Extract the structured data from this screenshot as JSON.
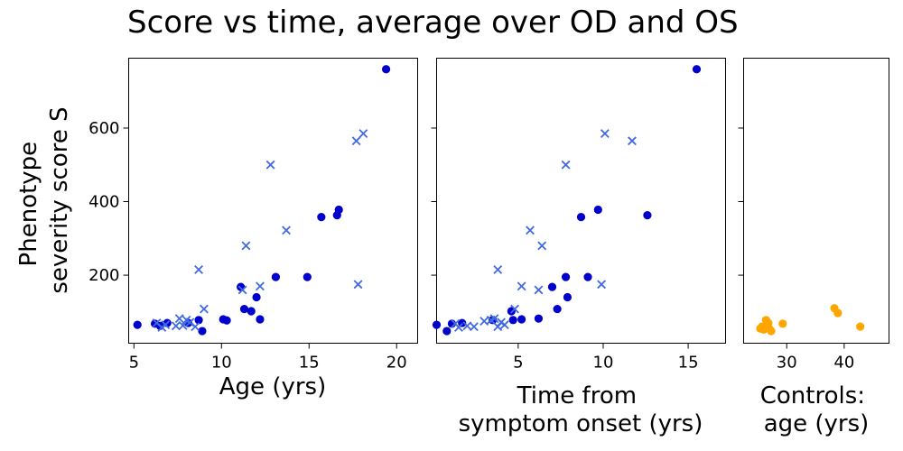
{
  "title": "Score vs time, average over OD and OS",
  "ylabel_lines": [
    "Phenotype",
    "severity score S"
  ],
  "chart_data": [
    {
      "type": "scatter",
      "xlabel": "Age (yrs)",
      "ylabel": "Phenotype severity score S",
      "xlim": [
        4.7,
        21.2
      ],
      "ylim": [
        15,
        790
      ],
      "xticks": [
        5,
        10,
        15,
        20
      ],
      "yticks": [
        200,
        400,
        600
      ],
      "series": [
        {
          "marker": "circle",
          "color": "#0000cd",
          "x": [
            5.2,
            6.2,
            6.5,
            6.9,
            8.1,
            8.7,
            8.9,
            10.1,
            10.3,
            11.1,
            11.3,
            11.7,
            12.0,
            12.2,
            13.1,
            14.9,
            15.7,
            16.6,
            16.7,
            19.4
          ],
          "y": [
            65,
            68,
            62,
            70,
            70,
            78,
            48,
            80,
            77,
            168,
            108,
            102,
            140,
            80,
            195,
            195,
            358,
            363,
            378,
            760
          ]
        },
        {
          "marker": "x",
          "color": "#4169e1",
          "x": [
            6.3,
            6.6,
            6.8,
            7.4,
            7.6,
            7.8,
            8.0,
            8.2,
            8.5,
            8.7,
            9.0,
            11.2,
            11.4,
            12.2,
            12.8,
            13.7,
            17.7,
            17.8,
            18.1
          ],
          "y": [
            70,
            58,
            65,
            62,
            82,
            63,
            78,
            72,
            60,
            215,
            108,
            160,
            280,
            170,
            500,
            322,
            565,
            175,
            585
          ]
        }
      ]
    },
    {
      "type": "scatter",
      "xlabel_lines": [
        "Time from",
        "symptom onset (yrs)"
      ],
      "xlim": [
        0.2,
        17.2
      ],
      "ylim": [
        15,
        790
      ],
      "xticks": [
        5,
        10,
        15
      ],
      "series": [
        {
          "marker": "circle",
          "color": "#0000cd",
          "x": [
            0.2,
            0.8,
            1.1,
            1.7,
            3.5,
            4.6,
            4.7,
            5.2,
            6.2,
            7.0,
            7.3,
            7.8,
            7.9,
            8.7,
            9.1,
            9.7,
            12.6,
            15.5
          ],
          "y": [
            65,
            48,
            68,
            70,
            78,
            102,
            78,
            80,
            82,
            168,
            108,
            195,
            140,
            358,
            195,
            378,
            363,
            760
          ]
        },
        {
          "marker": "x",
          "color": "#4169e1",
          "x": [
            1.3,
            1.5,
            2.0,
            2.4,
            3.0,
            3.4,
            3.6,
            3.8,
            3.8,
            4.0,
            4.2,
            4.8,
            5.2,
            5.7,
            6.2,
            6.4,
            7.8,
            9.9,
            10.1,
            11.7
          ],
          "y": [
            68,
            58,
            62,
            60,
            75,
            78,
            82,
            60,
            215,
            72,
            65,
            108,
            170,
            322,
            160,
            280,
            500,
            175,
            585,
            565
          ]
        }
      ]
    },
    {
      "type": "scatter",
      "xlabel_lines": [
        "Controls:",
        "age (yrs)"
      ],
      "xlim": [
        22.5,
        47.8
      ],
      "ylim": [
        15,
        790
      ],
      "xticks": [
        30,
        40
      ],
      "series": [
        {
          "marker": "circle",
          "color": "#ffa500",
          "x": [
            25.4,
            25.7,
            26.0,
            26.2,
            26.4,
            26.6,
            26.8,
            27.0,
            27.3,
            29.3,
            38.3,
            38.9,
            42.8
          ],
          "y": [
            55,
            60,
            52,
            58,
            78,
            65,
            70,
            54,
            48,
            68,
            110,
            97,
            60
          ]
        }
      ]
    }
  ]
}
